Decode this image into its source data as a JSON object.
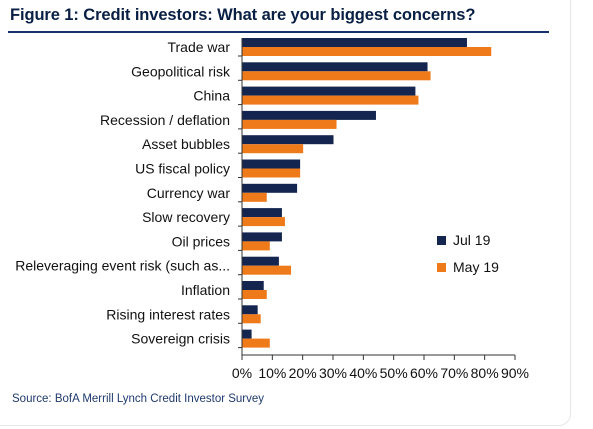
{
  "page": {
    "title": "Figure 1: Credit investors: What are your biggest concerns?",
    "source": "Source:  BofA Merrill Lynch Credit Investor Survey"
  },
  "colors": {
    "series_jul": "#14264f",
    "series_may": "#ef7a1a",
    "rule": "#16316a"
  },
  "chart_data": {
    "type": "bar",
    "orientation": "horizontal",
    "title": "Figure 1: Credit investors: What are your biggest concerns?",
    "categories": [
      "Trade war",
      "Geopolitical risk",
      "China",
      "Recession / deflation",
      "Asset bubbles",
      "US fiscal policy",
      "Currency war",
      "Slow recovery",
      "Oil prices",
      "Releveraging event risk (such as...",
      "Inflation",
      "Rising interest rates",
      "Sovereign crisis"
    ],
    "series": [
      {
        "name": "Jul 19",
        "values": [
          74,
          61,
          57,
          44,
          30,
          19,
          18,
          13,
          13,
          12,
          7,
          5,
          3
        ]
      },
      {
        "name": "May 19",
        "values": [
          82,
          62,
          58,
          31,
          20,
          19,
          8,
          14,
          9,
          16,
          8,
          6,
          9
        ]
      }
    ],
    "xlim": [
      0,
      90
    ],
    "xticks": [
      "0%",
      "10%",
      "20%",
      "30%",
      "40%",
      "50%",
      "60%",
      "70%",
      "80%",
      "90%"
    ],
    "xlabel": "",
    "ylabel": "",
    "grid": false,
    "legend_position": "right"
  }
}
